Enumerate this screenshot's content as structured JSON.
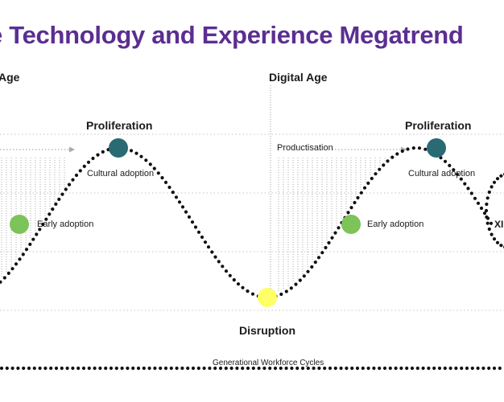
{
  "title": "e Technology and Experience Megatrend",
  "ages": {
    "left": "Age",
    "right": "Digital Age"
  },
  "phases": {
    "proliferation_left": "Proliferation",
    "proliferation_right": "Proliferation",
    "disruption": "Disruption"
  },
  "stages": {
    "cultural_adoption_left": "Cultural adoption",
    "cultural_adoption_right": "Cultural adoption",
    "early_adoption_left": "Early adoption",
    "early_adoption_right": "Early adoption",
    "productisation": "Productisation",
    "xp_fragment": "XI"
  },
  "footer": "Generational Workforce Cycles",
  "colors": {
    "title": "#5b2e91",
    "proliferation_marker": "#2a6a73",
    "early_adoption_marker": "#7cc35a",
    "disruption_marker": "#ffff66",
    "dotted_curve": "#111111",
    "guide_lines": "#bbbbbb"
  }
}
